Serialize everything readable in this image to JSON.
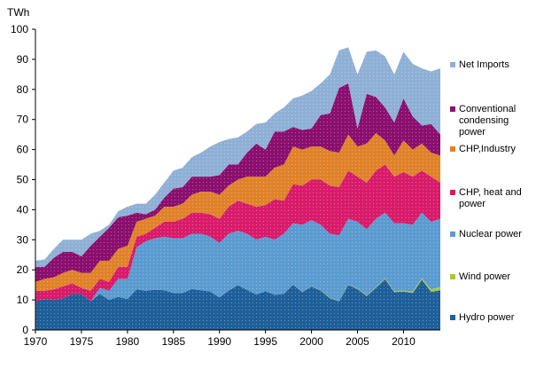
{
  "chart_data": {
    "type": "stacked-area",
    "y_label": "TWh",
    "x": [
      1970,
      1971,
      1972,
      1973,
      1974,
      1975,
      1976,
      1977,
      1978,
      1979,
      1980,
      1981,
      1982,
      1983,
      1984,
      1985,
      1986,
      1987,
      1988,
      1989,
      1990,
      1991,
      1992,
      1993,
      1994,
      1995,
      1996,
      1997,
      1998,
      1999,
      2000,
      2001,
      2002,
      2003,
      2004,
      2005,
      2006,
      2007,
      2008,
      2009,
      2010,
      2011,
      2012,
      2013,
      2014
    ],
    "xlim": [
      1970,
      2014
    ],
    "xticks": [
      1970,
      1975,
      1980,
      1985,
      1990,
      1995,
      2000,
      2005,
      2010
    ],
    "ylim": [
      0,
      100
    ],
    "yticks": [
      0,
      10,
      20,
      30,
      40,
      50,
      60,
      70,
      80,
      90,
      100
    ],
    "grid": false,
    "series": [
      {
        "name": "Hydro power",
        "color": "#1f5f99",
        "values": [
          9.5,
          10.3,
          10,
          10.5,
          12,
          12,
          9.5,
          12,
          10,
          11,
          10.3,
          13.5,
          13,
          13.4,
          13.2,
          12.3,
          12.3,
          13.6,
          13.2,
          12.8,
          10.8,
          13.1,
          14.9,
          13.3,
          11.8,
          12.9,
          11.7,
          12,
          15,
          12.6,
          14.5,
          13.1,
          10.6,
          9.5,
          15,
          13.6,
          11.3,
          14,
          16.9,
          12.6,
          12.8,
          12.3,
          16.7,
          12.7,
          13.2
        ]
      },
      {
        "name": "Wind power",
        "color": "#a6c93a",
        "values": [
          0,
          0,
          0,
          0,
          0,
          0,
          0,
          0,
          0,
          0,
          0,
          0,
          0,
          0,
          0,
          0,
          0,
          0,
          0,
          0,
          0,
          0,
          0,
          0,
          0,
          0,
          0,
          0,
          0,
          0.1,
          0.1,
          0.1,
          0.1,
          0.1,
          0.1,
          0.2,
          0.2,
          0.2,
          0.3,
          0.3,
          0.3,
          0.5,
          0.5,
          0.8,
          1.1
        ]
      },
      {
        "name": "Nuclear power",
        "color": "#5b9bd0",
        "values": [
          0,
          0,
          0,
          0,
          0,
          0,
          0,
          2,
          3,
          6,
          6.7,
          14,
          16.5,
          17.1,
          17.8,
          18.2,
          18.2,
          18.4,
          18.8,
          18.2,
          18.2,
          18.9,
          18.1,
          18.7,
          18.2,
          18.1,
          18.3,
          20,
          20.5,
          22.3,
          21.9,
          21.8,
          21.3,
          21.9,
          21.9,
          22.2,
          22,
          22.8,
          21.8,
          22.6,
          22.4,
          22.2,
          21.8,
          22.5,
          22.7
        ]
      },
      {
        "name": "CHP, heat and power",
        "color": "#d81b6a",
        "values": [
          3.5,
          2.7,
          3.5,
          4,
          3.5,
          2,
          3.5,
          3,
          3,
          4,
          4,
          3.5,
          2.5,
          3.5,
          5,
          5.5,
          6.5,
          7,
          7,
          7.5,
          8,
          9,
          10,
          10,
          11,
          10.5,
          13.5,
          11,
          13,
          13,
          13.5,
          15,
          16,
          16,
          16,
          15,
          15.5,
          16,
          16,
          15.5,
          17,
          16,
          14,
          15,
          12
        ]
      },
      {
        "name": "CHP,Industry",
        "color": "#e0822a",
        "values": [
          3,
          4,
          4,
          4.5,
          4.5,
          5,
          6,
          6,
          7,
          6,
          7,
          5,
          5,
          4,
          5,
          5,
          5,
          6,
          7,
          7.5,
          8,
          7,
          7,
          9,
          10,
          9.5,
          10.5,
          12,
          12.5,
          12,
          11,
          11,
          11.5,
          11.5,
          12,
          10,
          13,
          12.5,
          8,
          7,
          10.5,
          9,
          9,
          8,
          9
        ]
      },
      {
        "name": "Conventional condensing power",
        "color": "#8b0f6e",
        "values": [
          5,
          4,
          6.5,
          7,
          6,
          5.5,
          9,
          8,
          11,
          10.5,
          10,
          3,
          1.5,
          2,
          3,
          6,
          5.5,
          6,
          5,
          5,
          6.5,
          7,
          5,
          8,
          11,
          9,
          12,
          11,
          6.5,
          6.5,
          6,
          10.5,
          12.5,
          21.5,
          17,
          6,
          16.5,
          12,
          11,
          11,
          14,
          11,
          6,
          9.5,
          7
        ]
      },
      {
        "name": "Net Imports",
        "color": "#8fb0d6",
        "values": [
          2,
          2.5,
          3,
          4,
          4,
          5.5,
          4,
          2,
          1,
          2,
          3,
          3,
          3.5,
          5,
          5,
          6,
          6.5,
          6.5,
          8,
          10,
          11,
          8.5,
          9,
          7,
          6.5,
          9,
          6,
          8,
          9.5,
          11.5,
          12.5,
          10.5,
          13,
          12.5,
          12,
          18,
          14,
          15.5,
          17,
          16,
          15.5,
          17.5,
          19,
          17.5,
          22
        ]
      }
    ]
  }
}
